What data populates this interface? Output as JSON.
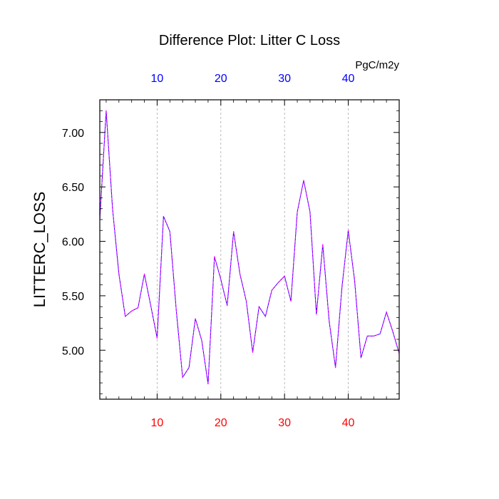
{
  "chart_data": {
    "type": "line",
    "title": "Difference Plot: Litter C Loss",
    "units": "PgC/m2y",
    "ylabel": "LITTERC_LOSS",
    "xlabel": "",
    "xlim": [
      1,
      48
    ],
    "ylim": [
      4.55,
      7.3
    ],
    "x_ticks": [
      10,
      20,
      30,
      40
    ],
    "y_ticks": [
      "5.00",
      "5.50",
      "6.00",
      "6.50",
      "7.00"
    ],
    "grid_x": true,
    "grid_y": false,
    "series": [
      {
        "color_a": "#0000ff",
        "color_b": "#ff00ff",
        "x": [
          1,
          2,
          3,
          4,
          5,
          6,
          7,
          8,
          9,
          10,
          11,
          12,
          13,
          14,
          15,
          16,
          17,
          18,
          19,
          20,
          21,
          22,
          23,
          24,
          25,
          26,
          27,
          28,
          29,
          30,
          31,
          32,
          33,
          34,
          35,
          36,
          37,
          38,
          39,
          40,
          41,
          42,
          43,
          44,
          45,
          46,
          47,
          48
        ],
        "y": [
          6.2,
          7.2,
          6.3,
          5.7,
          5.31,
          5.36,
          5.39,
          5.7,
          5.41,
          5.11,
          6.23,
          6.09,
          5.37,
          4.75,
          4.84,
          5.29,
          5.09,
          4.69,
          5.86,
          5.65,
          5.41,
          6.09,
          5.7,
          5.45,
          4.98,
          5.4,
          5.31,
          5.55,
          5.62,
          5.68,
          5.45,
          6.27,
          6.56,
          6.27,
          5.33,
          5.97,
          5.27,
          4.84,
          5.57,
          6.1,
          5.64,
          4.93,
          5.13,
          5.13,
          5.15,
          5.35,
          5.17,
          4.97
        ]
      }
    ]
  },
  "colors": {
    "top_tick_labels": "#0000ff",
    "bottom_tick_labels": "#ff0000",
    "line_primary": "#0000ff",
    "line_dash": "#ff00ff",
    "grid": "#aaaaaa"
  }
}
